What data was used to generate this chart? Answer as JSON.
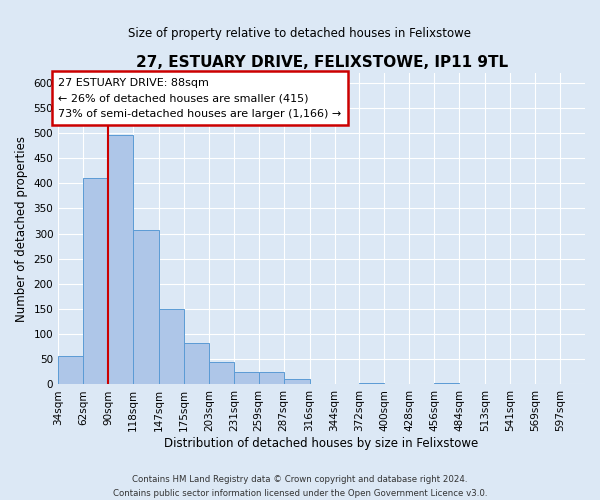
{
  "title": "27, ESTUARY DRIVE, FELIXSTOWE, IP11 9TL",
  "subtitle": "Size of property relative to detached houses in Felixstowe",
  "xlabel": "Distribution of detached houses by size in Felixstowe",
  "ylabel": "Number of detached properties",
  "bar_values": [
    57,
    410,
    496,
    307,
    150,
    82,
    44,
    25,
    25,
    10,
    0,
    0,
    2,
    0,
    0,
    2,
    0,
    0,
    0,
    0
  ],
  "bin_starts": [
    34,
    62,
    90,
    118,
    147,
    175,
    203,
    231,
    259,
    287,
    316,
    344,
    372,
    400,
    428,
    456,
    484,
    513,
    541,
    569,
    597
  ],
  "bar_color": "#aec6e8",
  "bar_edge_color": "#5b9bd5",
  "vline_x": 90,
  "vline_color": "#cc0000",
  "ylim": [
    0,
    620
  ],
  "yticks": [
    0,
    50,
    100,
    150,
    200,
    250,
    300,
    350,
    400,
    450,
    500,
    550,
    600
  ],
  "annotation_title": "27 ESTUARY DRIVE: 88sqm",
  "annotation_line1": "← 26% of detached houses are smaller (415)",
  "annotation_line2": "73% of semi-detached houses are larger (1,166) →",
  "annotation_box_color": "#ffffff",
  "annotation_box_edge": "#cc0000",
  "footer_line1": "Contains HM Land Registry data © Crown copyright and database right 2024.",
  "footer_line2": "Contains public sector information licensed under the Open Government Licence v3.0.",
  "background_color": "#dce8f5",
  "plot_bg_color": "#dce8f5",
  "grid_color": "#ffffff"
}
